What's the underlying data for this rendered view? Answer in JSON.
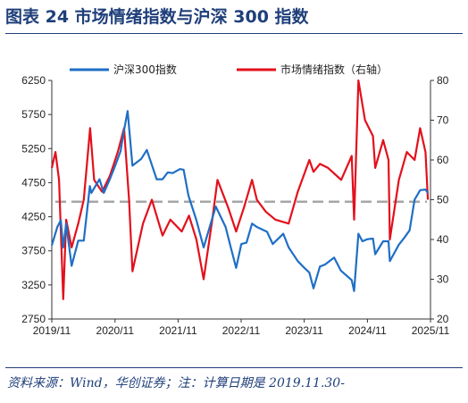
{
  "figure": {
    "title": "图表  24    市场情绪指数与沪深 300 指数",
    "source": "资料来源：Wind，华创证券；注：计算日期是 2019.11.30-"
  },
  "chart_data": {
    "type": "line",
    "x_ticks": [
      "2019/11",
      "2020/11",
      "2021/11",
      "2022/11",
      "2023/11",
      "2024/11",
      "2025/11"
    ],
    "left_axis": {
      "ticks": [
        2750,
        3250,
        3750,
        4250,
        4750,
        5250,
        5750,
        6250
      ],
      "ylim": [
        2750,
        6250
      ]
    },
    "right_axis": {
      "ticks": [
        20,
        30,
        40,
        50,
        60,
        70,
        80
      ],
      "ylim": [
        20,
        80
      ]
    },
    "reference_line": {
      "axis": "right",
      "value": 49.5,
      "style": "dashed",
      "color": "#a6a6a6"
    },
    "legend": {
      "placement": "top"
    },
    "series": [
      {
        "name": "沪深300指数",
        "axis": "left",
        "color": "#1f6fc5",
        "x": [
          "2019-11-29",
          "2019-12-31",
          "2020-01-20",
          "2020-02-03",
          "2020-02-20",
          "2020-03-23",
          "2020-04-30",
          "2020-06-01",
          "2020-07-06",
          "2020-07-15",
          "2020-08-31",
          "2020-09-25",
          "2020-10-30",
          "2020-11-30",
          "2020-12-31",
          "2021-01-15",
          "2021-02-10",
          "2021-03-10",
          "2021-04-30",
          "2021-06-01",
          "2021-07-28",
          "2021-08-31",
          "2021-09-30",
          "2021-10-29",
          "2021-12-10",
          "2021-12-31",
          "2022-01-28",
          "2022-03-15",
          "2022-04-26",
          "2022-05-31",
          "2022-07-05",
          "2022-08-31",
          "2022-09-30",
          "2022-10-31",
          "2022-11-30",
          "2022-12-30",
          "2023-01-31",
          "2023-02-28",
          "2023-04-28",
          "2023-05-31",
          "2023-07-31",
          "2023-08-31",
          "2023-10-23",
          "2023-11-30",
          "2023-12-29",
          "2024-01-22",
          "2024-02-28",
          "2024-03-29",
          "2024-05-20",
          "2024-06-28",
          "2024-08-30",
          "2024-09-13",
          "2024-10-08",
          "2024-10-31",
          "2024-11-29",
          "2024-12-31",
          "2025-01-13",
          "2025-02-28",
          "2025-03-31",
          "2025-04-08",
          "2025-05-30",
          "2025-06-30",
          "2025-07-31",
          "2025-08-29",
          "2025-09-30",
          "2025-10-31",
          "2025-11-14"
        ],
        "values": [
          3830,
          4100,
          4200,
          3800,
          4150,
          3530,
          3900,
          3900,
          4700,
          4600,
          4800,
          4600,
          4800,
          5000,
          5211,
          5450,
          5800,
          5000,
          5100,
          5230,
          4800,
          4800,
          4900,
          4890,
          4950,
          4940,
          4560,
          4200,
          3800,
          4100,
          4400,
          4100,
          3800,
          3500,
          3850,
          3870,
          4150,
          4100,
          4030,
          3850,
          4000,
          3800,
          3600,
          3500,
          3430,
          3200,
          3520,
          3550,
          3650,
          3460,
          3320,
          3160,
          4000,
          3890,
          3920,
          3930,
          3700,
          3890,
          3890,
          3600,
          3840,
          3940,
          4050,
          4500,
          4640,
          4650,
          4600
        ]
      },
      {
        "name": "市场情绪指数（右轴）",
        "axis": "right",
        "color": "#e3101c",
        "x": [
          "2019-11-29",
          "2019-12-20",
          "2020-01-10",
          "2020-02-03",
          "2020-02-20",
          "2020-03-23",
          "2020-04-30",
          "2020-06-01",
          "2020-07-08",
          "2020-07-31",
          "2020-09-15",
          "2020-10-30",
          "2020-12-15",
          "2021-01-20",
          "2021-02-18",
          "2021-03-10",
          "2021-05-10",
          "2021-06-30",
          "2021-08-31",
          "2021-10-15",
          "2021-12-20",
          "2022-01-31",
          "2022-03-15",
          "2022-04-26",
          "2022-06-15",
          "2022-07-15",
          "2022-09-15",
          "2022-10-31",
          "2022-12-15",
          "2023-01-31",
          "2023-02-28",
          "2023-04-20",
          "2023-06-15",
          "2023-08-31",
          "2023-10-23",
          "2023-12-29",
          "2024-01-22",
          "2024-02-28",
          "2024-04-15",
          "2024-06-30",
          "2024-08-30",
          "2024-09-13",
          "2024-10-08",
          "2024-11-15",
          "2024-12-31",
          "2025-01-13",
          "2025-02-28",
          "2025-03-31",
          "2025-04-08",
          "2025-05-30",
          "2025-07-15",
          "2025-08-29",
          "2025-09-30",
          "2025-10-31",
          "2025-11-14"
        ],
        "values": [
          58,
          62,
          55,
          25,
          45,
          38,
          44,
          50,
          68,
          55,
          52,
          56,
          62,
          68,
          50,
          32,
          44,
          50,
          41,
          45,
          42,
          46,
          40,
          30,
          45,
          55,
          48,
          42,
          48,
          55,
          50,
          47,
          45,
          44,
          52,
          60,
          57,
          59,
          58,
          55,
          61,
          45,
          80,
          70,
          66,
          58,
          65,
          60,
          40,
          55,
          62,
          60,
          68,
          62,
          50
        ]
      }
    ]
  }
}
